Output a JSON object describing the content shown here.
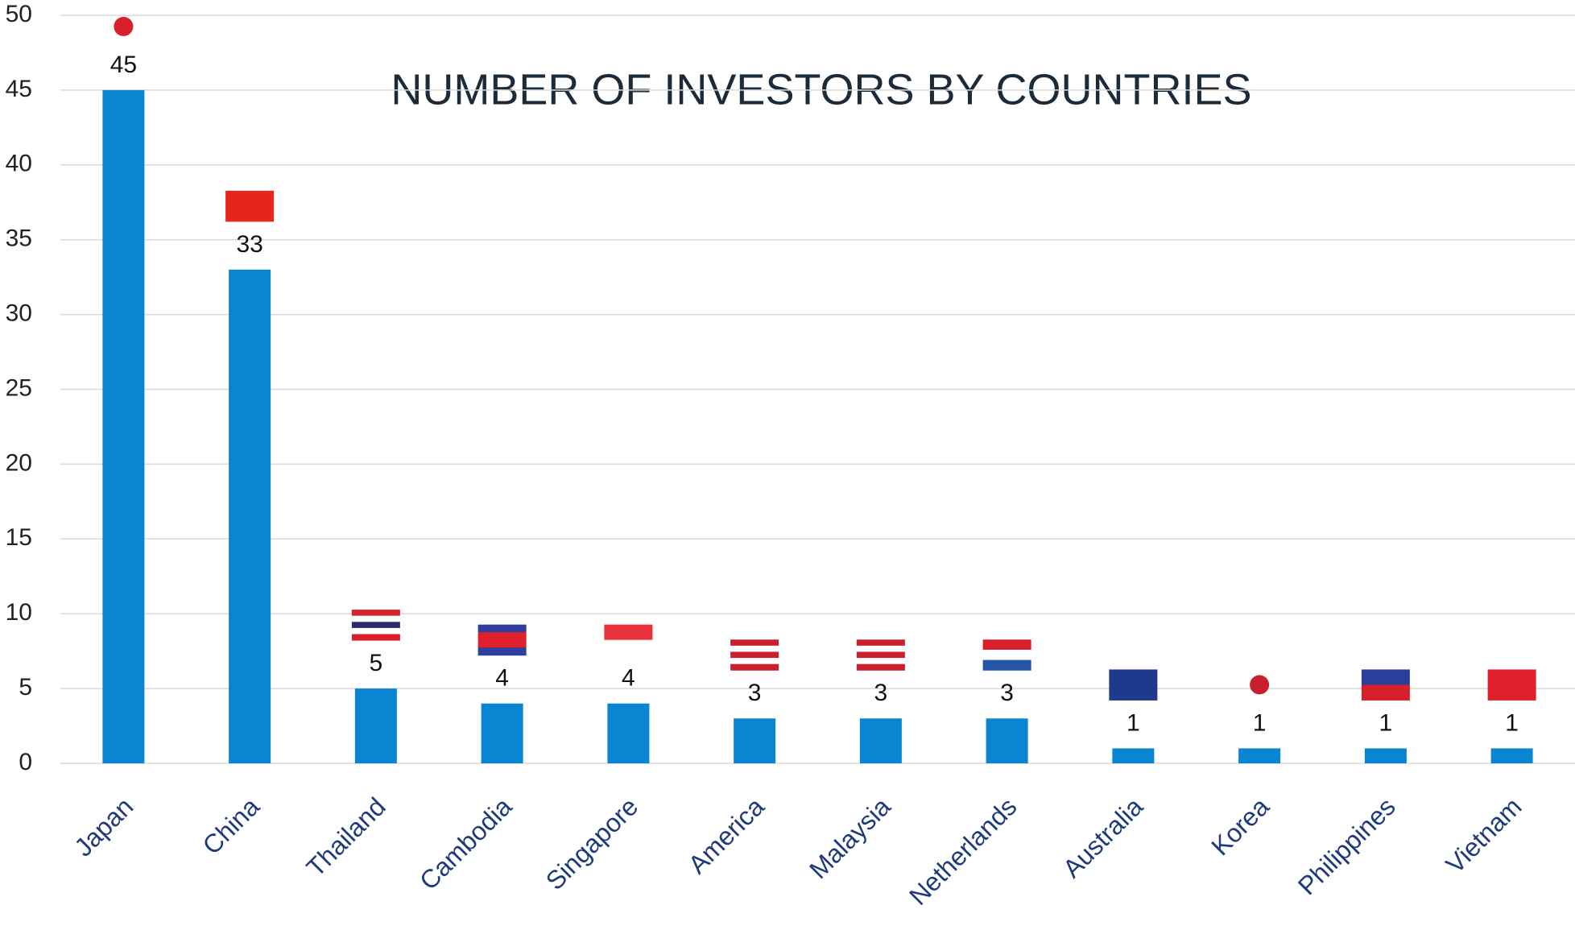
{
  "chart_data": {
    "type": "bar",
    "title": "NUMBER OF INVESTORS BY COUNTRIES",
    "categories": [
      "Japan",
      "China",
      "Thailand",
      "Cambodia",
      "Singapore",
      "America",
      "Malaysia",
      "Netherlands",
      "Australia",
      "Korea",
      "Philippines",
      "Vietnam"
    ],
    "values": [
      45,
      33,
      5,
      4,
      4,
      3,
      3,
      3,
      1,
      1,
      1,
      1
    ],
    "color": "#0a85d1",
    "ylim": [
      0,
      50
    ],
    "yticks": [
      0,
      5,
      10,
      15,
      20,
      25,
      30,
      35,
      40,
      45,
      50
    ],
    "grid": true
  }
}
